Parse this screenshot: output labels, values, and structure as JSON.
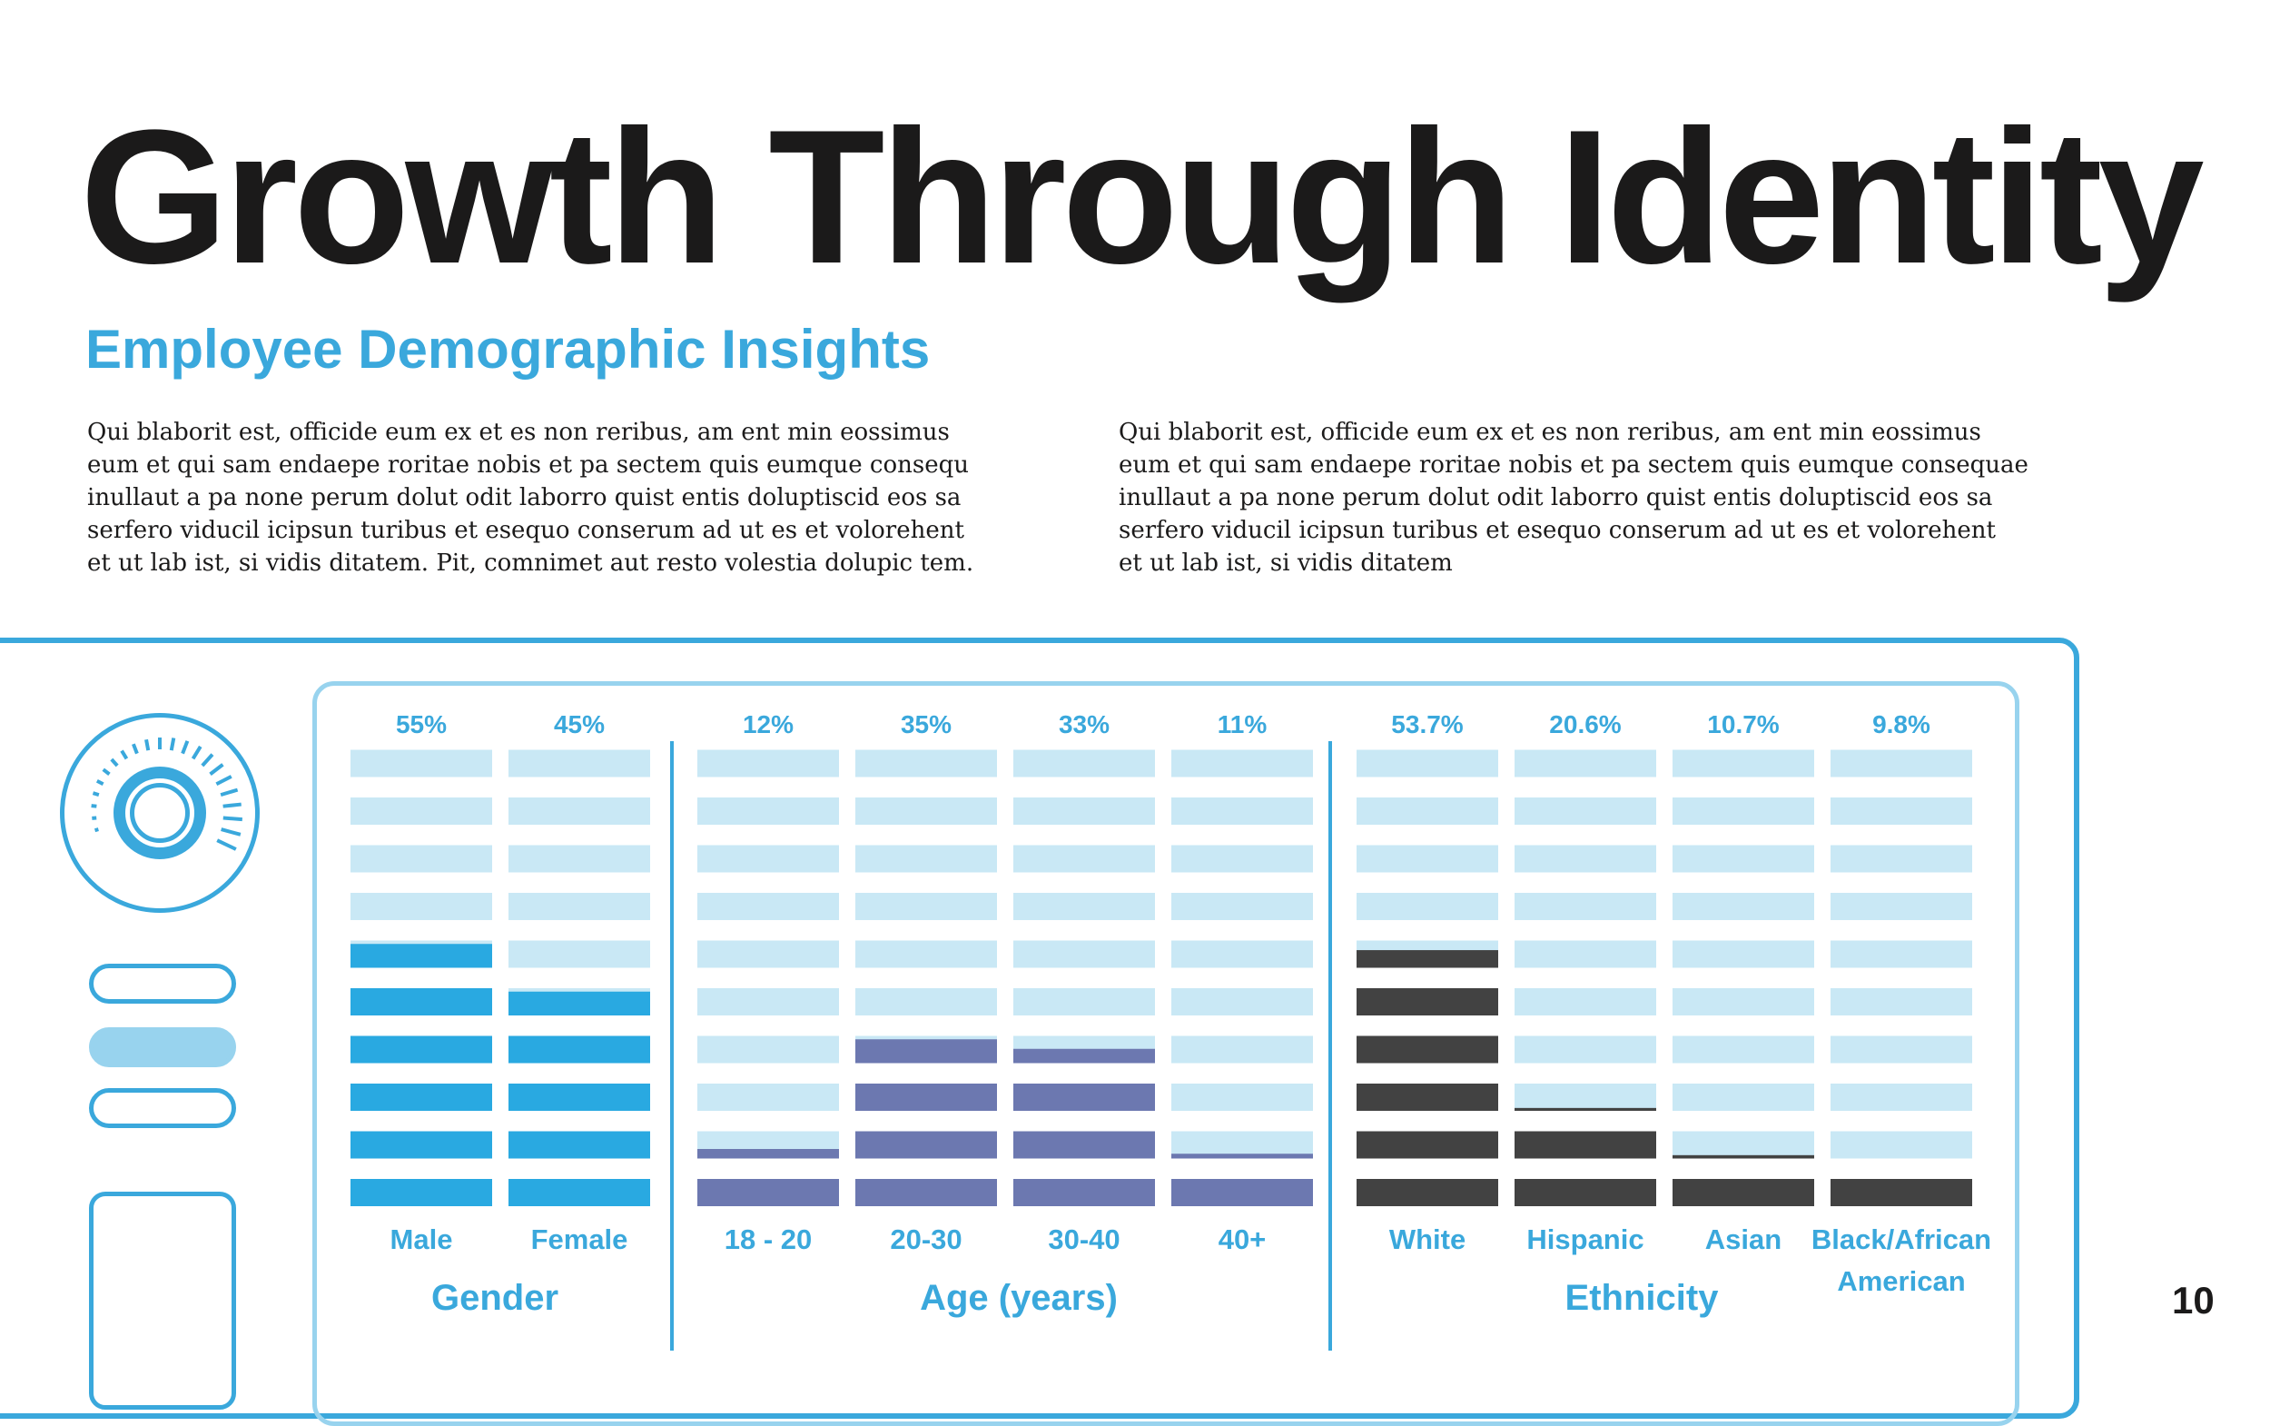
{
  "page": {
    "title": "Growth Through Identity",
    "subtitle": "Employee Demographic Insights",
    "paragraph_1": "Qui blaborit est, officide eum ex et es non reribus, am ent min eossimus\neum et qui sam endaepe roritae nobis et pa sectem quis eumque consequ\ninullaut a pa none perum dolut odit laborro quist entis doluptiscid eos sa\nserfero viducil icipsun turibus et esequo conserum ad ut es et volorehent\net ut lab ist, si vidis ditatem. Pit, comnimet aut resto volestia dolupic tem.",
    "paragraph_2": "Qui blaborit est, officide eum ex et es non reribus, am ent min eossimus\neum et qui sam endaepe roritae nobis et pa sectem quis eumque consequae\ninullaut a pa none perum dolut odit laborro quist entis doluptiscid eos sa\nserfero viducil icipsun turibus et esequo conserum ad ut es et volorehent\net ut lab ist, si vidis ditatem",
    "page_number": "10"
  },
  "colors": {
    "text": "#1b1a1a",
    "accent": "#3aa8dc",
    "light": "#98d3ee",
    "track": "#c9e8f5",
    "gender": "#29a9e1",
    "age": "#6c78b0",
    "ethnicity": "#424242"
  },
  "chart_data": {
    "type": "bar",
    "title": "Employee Demographic Insights",
    "ylim": [
      0,
      100
    ],
    "segments_per_bar": 10,
    "groups": [
      {
        "name": "Gender",
        "color_key": "gender",
        "categories": [
          "Male",
          "Female"
        ],
        "values": [
          55,
          45
        ],
        "labels": [
          "55%",
          "45%"
        ]
      },
      {
        "name": "Age (years)",
        "color_key": "age",
        "categories": [
          "18 - 20",
          "20-30",
          "30-40",
          "40+"
        ],
        "values": [
          12,
          35,
          33,
          11
        ],
        "labels": [
          "12%",
          "35%",
          "33%",
          "11%"
        ]
      },
      {
        "name": "Ethnicity",
        "color_key": "ethnicity",
        "categories": [
          "White",
          "Hispanic",
          "Asian",
          "Black/African American"
        ],
        "values": [
          53.7,
          20.6,
          10.7,
          9.8
        ],
        "labels": [
          "53.7%",
          "20.6%",
          "10.7%",
          "9.8%"
        ]
      }
    ]
  }
}
